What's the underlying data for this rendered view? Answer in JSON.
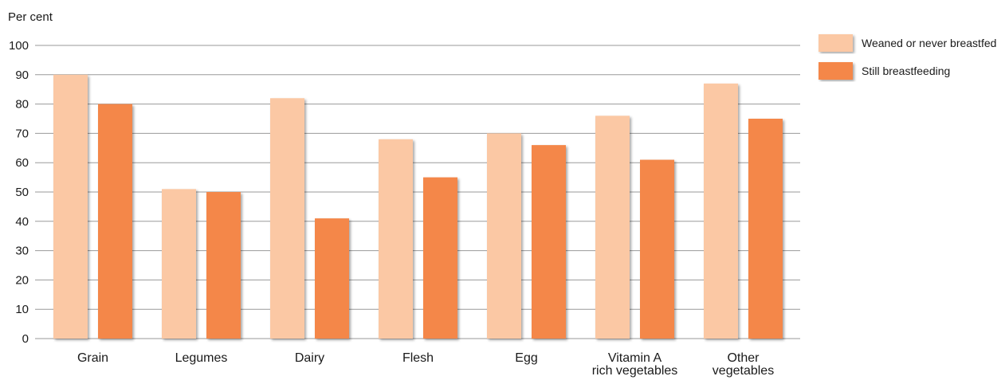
{
  "chart_data": {
    "type": "bar",
    "ylabel": "Per cent",
    "ylim": [
      0,
      100
    ],
    "yticks": [
      0,
      10,
      20,
      30,
      40,
      50,
      60,
      70,
      80,
      90,
      100
    ],
    "grid": true,
    "legend_position": "top-right",
    "categories": [
      [
        "Grain"
      ],
      [
        "Legumes"
      ],
      [
        "Dairy"
      ],
      [
        "Flesh"
      ],
      [
        "Egg"
      ],
      [
        "Vitamin A",
        "rich vegetables"
      ],
      [
        "Other",
        "vegetables"
      ]
    ],
    "series": [
      {
        "name": "Weaned or never breastfed",
        "color": "#fbc8a4",
        "values": [
          90,
          51,
          82,
          68,
          70,
          76,
          87
        ]
      },
      {
        "name": "Still breastfeeding",
        "color": "#f4874a",
        "values": [
          80,
          50,
          41,
          55,
          66,
          61,
          75
        ]
      }
    ]
  }
}
